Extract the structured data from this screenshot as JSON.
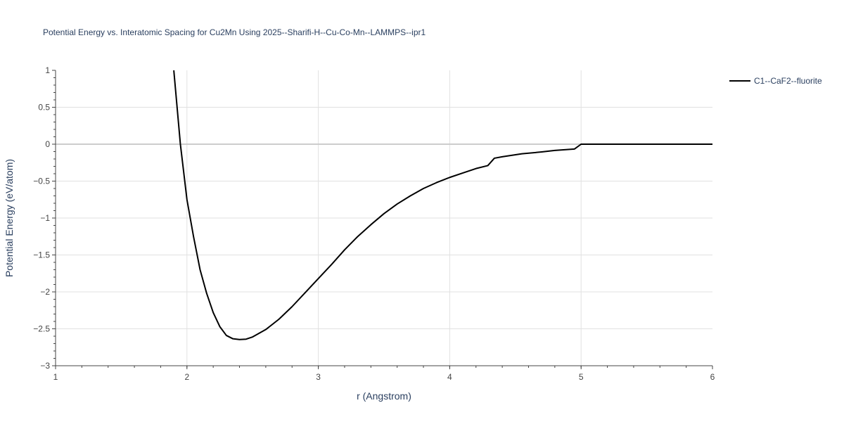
{
  "chart_data": {
    "type": "line",
    "title": "Potential Energy vs. Interatomic Spacing for Cu2Mn Using 2025--Sharifi-H--Cu-Co-Mn--LAMMPS--ipr1",
    "xlabel": "r (Angstrom)",
    "ylabel": "Potential Energy (eV/atom)",
    "xlim": [
      1,
      6
    ],
    "ylim": [
      -3,
      1
    ],
    "x_ticks": [
      "1",
      "2",
      "3",
      "4",
      "5",
      "6"
    ],
    "y_ticks": [
      "1",
      "0.5",
      "0",
      "−0.5",
      "−1",
      "−1.5",
      "−2",
      "−2.5",
      "−3"
    ],
    "grid": true,
    "legend_position": "top-right",
    "series": [
      {
        "name": "C1--CaF2--fluorite",
        "color": "#000000",
        "x": [
          1.9,
          1.95,
          2.0,
          2.05,
          2.1,
          2.15,
          2.2,
          2.25,
          2.3,
          2.35,
          2.4,
          2.45,
          2.5,
          2.6,
          2.7,
          2.8,
          2.9,
          3.0,
          3.1,
          3.2,
          3.3,
          3.4,
          3.5,
          3.6,
          3.7,
          3.8,
          3.9,
          4.0,
          4.1,
          4.2,
          4.29,
          4.34,
          4.4,
          4.55,
          4.7,
          4.8,
          4.95,
          5.0,
          5.5,
          6.0
        ],
        "y": [
          1.0,
          0.0,
          -0.75,
          -1.25,
          -1.7,
          -2.02,
          -2.28,
          -2.47,
          -2.59,
          -2.635,
          -2.645,
          -2.64,
          -2.61,
          -2.51,
          -2.37,
          -2.2,
          -2.01,
          -1.82,
          -1.63,
          -1.43,
          -1.25,
          -1.09,
          -0.94,
          -0.81,
          -0.7,
          -0.6,
          -0.52,
          -0.45,
          -0.39,
          -0.33,
          -0.29,
          -0.19,
          -0.17,
          -0.13,
          -0.105,
          -0.085,
          -0.065,
          0.0,
          0.0,
          0.0
        ]
      }
    ]
  }
}
